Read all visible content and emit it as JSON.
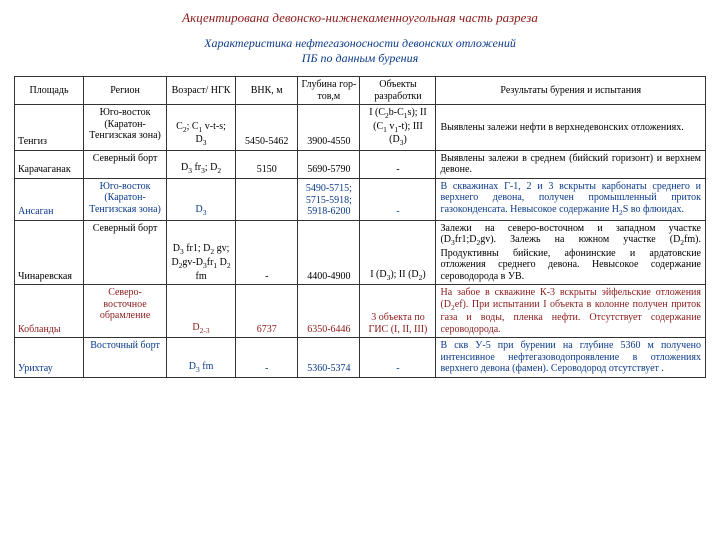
{
  "titles": {
    "t1": "Акцентирована девонско-нижнекаменноугольная часть разреза",
    "t2": "Характеристика нефтегазоносности девонских отложений",
    "t3": "ПБ по данным бурения"
  },
  "colors": {
    "blue": "#0b3a8a",
    "maroon": "#8a1a1a"
  },
  "headers": {
    "area": "Площадь",
    "region": "Регион",
    "age": "Возраст/ НГК",
    "vnk": "ВНК, м",
    "depth": "Глубина гор-тов,м",
    "obj": "Объекты разработки",
    "res": "Результаты бурения и испытания"
  },
  "rows": [
    {
      "color": "black",
      "area": "Тенгиз",
      "region": "Юго-восток (Каратон-Тенгизская зона)",
      "age": "C₂; C₁ v-t-s; D₃",
      "vnk": "5450-5462",
      "depth": "3900-4550",
      "obj": "I (C₂b-C₁s); II (C₁ v₁-t); III (D₃)",
      "res": "Выявлены залежи нефти в верхнедевонских отложениях."
    },
    {
      "color": "black",
      "area": "Карачаганак",
      "region": "Северный борт",
      "age": "D₃ fr₃; D₂",
      "vnk": "5150",
      "depth": "5690-5790",
      "obj": "-",
      "res": "Выявлены залежи в среднем (бийский горизонт) и верхнем девоне."
    },
    {
      "color": "blue",
      "area": "Ансаган",
      "region": "Юго-восток (Каратон-Тенгизская зона)",
      "age": "D₃",
      "vnk": "",
      "depth": "5490-5715; 5715-5918; 5918-6200",
      "obj": "-",
      "res": "В скважинах Г-1, 2 и 3 вскрыты карбонаты среднего и верхнего девона, получен промышленный приток газоконденсата. Невысокое содержание H₂S во флюидах."
    },
    {
      "color": "black",
      "area": "Чинаревская",
      "region": "Северный борт",
      "age": "D₃ fr1; D₂ gv; D₂gv-D₃fr₁ D₂ fm",
      "vnk": "-",
      "depth": "4400-4900",
      "obj": "I (D₃); II (D₂)",
      "res": "Залежи на северо-восточном и западном участке (D₃fr1;D₂gv). Залежь на южном участке (D₂fm). Продуктивны бийские, афонинские и ардатовские отложения среднего девона. Невысокое содержание сероводорода в УВ."
    },
    {
      "color": "maroon",
      "area": "Кобланды",
      "region": "Северо-восточное обрамление",
      "age": "D₂₋₃",
      "vnk": "6737",
      "depth": "6350-6446",
      "obj": "3 объекта по ГИС (I, II, III)",
      "res": "На забое в скважине К-3 вскрыты эйфельские отложения (D₂ef). При испытании I объекта в колонне получен приток газа и воды, пленка нефти. Отсутствует содержание сероводорода."
    },
    {
      "color": "blue",
      "area": "Урихтау",
      "region": "Восточный борт",
      "age": "D₃ fm",
      "vnk": "-",
      "depth": "5360-5374",
      "obj": "-",
      "res": "В скв У-5 при бурении на глубине 5360 м получено интенсивное нефтегазоводопроявление в отложениях верхнего девона (фамен). Сероводород отсутствует ."
    }
  ]
}
